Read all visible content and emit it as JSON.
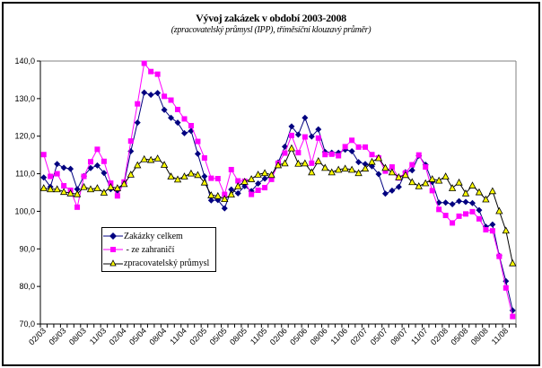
{
  "chart_data": {
    "type": "line",
    "title": "Vývoj zakázek v období 2003-2008",
    "subtitle": "(zpracovatelský průmysl (IPP), tříměsíční klouzavý průměr)",
    "xlabel": "",
    "ylabel": "",
    "ylim": [
      70,
      140
    ],
    "yticks": [
      "70,0",
      "80,0",
      "90,0",
      "100,0",
      "110,0",
      "120,0",
      "130,0",
      "140,0"
    ],
    "x_start": "02/03",
    "x_end": "12/08",
    "xtick_labels": [
      "02/03",
      "05/03",
      "08/03",
      "11/03",
      "02/04",
      "05/04",
      "08/04",
      "11/04",
      "02/05",
      "05/05",
      "08/05",
      "11/05",
      "02/06",
      "05/06",
      "08/06",
      "11/06",
      "02/07",
      "05/07",
      "08/07",
      "11/07",
      "02/08",
      "05/08",
      "08/08",
      "11/08"
    ],
    "legend_position": "lower-left",
    "series": [
      {
        "name": "Zakázky celkem",
        "color": "#000080",
        "marker": "diamond",
        "values": [
          109.0,
          106.5,
          112.6,
          111.6,
          111.3,
          105.9,
          109.4,
          111.5,
          112.2,
          110.2,
          105.9,
          105.5,
          107.5,
          116.0,
          123.6,
          131.6,
          131.0,
          131.5,
          127.0,
          124.9,
          123.6,
          120.8,
          121.4,
          115.3,
          109.3,
          102.9,
          103.0,
          100.8,
          105.8,
          104.8,
          106.7,
          105.4,
          107.4,
          108.7,
          109.4,
          113.0,
          117.2,
          122.6,
          120.4,
          124.9,
          119.9,
          121.8,
          115.8,
          115.6,
          115.6,
          116.4,
          116.0,
          113.1,
          112.6,
          112.0,
          109.9,
          104.7,
          105.5,
          106.5,
          110.4,
          110.9,
          114.8,
          112.4,
          107.8,
          102.3,
          102.3,
          101.9,
          102.7,
          102.5,
          102.2,
          100.3,
          95.9,
          96.5,
          88.2,
          81.4,
          73.6
        ]
      },
      {
        "name": " - ze zahraničí",
        "color": "#FF00FF",
        "marker": "square",
        "values": [
          115.1,
          109.3,
          110.0,
          106.8,
          105.6,
          101.1,
          109.3,
          113.2,
          116.5,
          113.3,
          107.5,
          104.1,
          107.8,
          118.7,
          128.6,
          139.4,
          137.2,
          136.5,
          130.6,
          129.6,
          127.1,
          124.6,
          122.8,
          118.6,
          114.2,
          108.8,
          108.7,
          104.5,
          111.1,
          108.1,
          108.0,
          104.5,
          105.6,
          106.3,
          108.5,
          112.8,
          115.5,
          120.2,
          115.6,
          119.8,
          112.8,
          119.5,
          115.1,
          115.2,
          114.8,
          117.2,
          118.9,
          117.1,
          117.1,
          115.1,
          114.2,
          110.7,
          111.8,
          108.9,
          110.2,
          112.4,
          115.0,
          111.8,
          105.5,
          100.5,
          98.9,
          96.9,
          98.7,
          99.3,
          99.9,
          98.0,
          95.1,
          94.8,
          88.0,
          79.6,
          72.0
        ]
      },
      {
        "name": "zpracovatelský průmysl",
        "color": "#000000",
        "marker": "triangle",
        "marker_fill": "#FFFF00",
        "values": [
          106.2,
          105.9,
          105.9,
          105.2,
          104.8,
          104.6,
          106.5,
          105.9,
          106.2,
          105.0,
          106.5,
          106.2,
          107.3,
          109.8,
          112.3,
          113.9,
          113.7,
          114.1,
          112.4,
          109.3,
          108.5,
          109.3,
          110.1,
          109.7,
          107.7,
          104.3,
          104.1,
          103.3,
          104.5,
          106.7,
          107.9,
          108.6,
          109.8,
          110.2,
          109.7,
          112.3,
          112.8,
          116.8,
          112.7,
          112.8,
          110.4,
          113.4,
          111.6,
          110.4,
          111.1,
          111.4,
          111.1,
          110.2,
          111.4,
          113.2,
          114.2,
          111.6,
          110.4,
          109.1,
          109.7,
          107.8,
          106.7,
          107.5,
          108.6,
          108.2,
          109.3,
          106.2,
          107.7,
          104.8,
          106.9,
          105.1,
          103.2,
          105.4,
          100.1,
          94.9,
          86.2
        ]
      }
    ]
  }
}
